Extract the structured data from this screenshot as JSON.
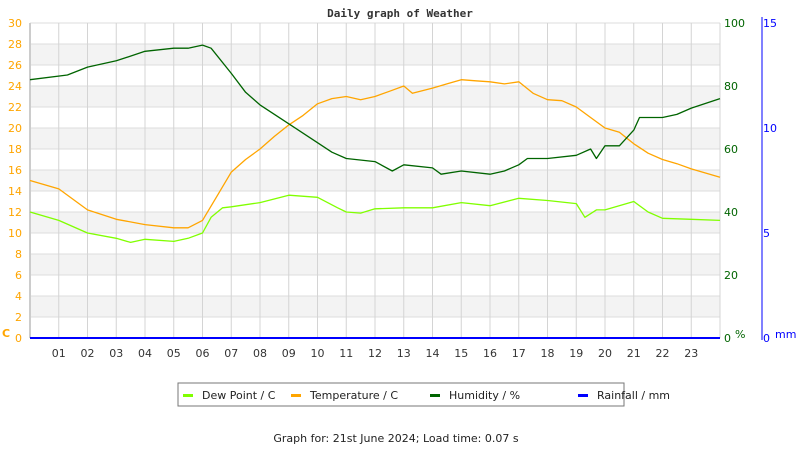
{
  "chart_data": {
    "type": "line",
    "title": "Daily graph of Weather",
    "x_ticks": [
      "01",
      "02",
      "03",
      "04",
      "05",
      "06",
      "07",
      "08",
      "09",
      "10",
      "11",
      "12",
      "13",
      "14",
      "15",
      "16",
      "17",
      "18",
      "19",
      "20",
      "21",
      "22",
      "23"
    ],
    "xlim": [
      0,
      24
    ],
    "grid": true,
    "legend_placement": "bottom",
    "axes": {
      "left": {
        "unit": "C",
        "ylim": [
          0,
          30
        ],
        "ticks": [
          "0",
          "2",
          "4",
          "6",
          "8",
          "10",
          "12",
          "14",
          "16",
          "18",
          "20",
          "22",
          "24",
          "26",
          "28",
          "30"
        ],
        "color": "#ffa500"
      },
      "right": {
        "unit": "%",
        "ylim": [
          0,
          100
        ],
        "ticks": [
          "0",
          "20",
          "40",
          "60",
          "80",
          "100"
        ],
        "color": "#006400"
      },
      "far_right": {
        "unit": "mm",
        "ylim": [
          0,
          15
        ],
        "ticks": [
          "0",
          "5",
          "10",
          "15"
        ],
        "color": "#0000ff"
      }
    },
    "series": [
      {
        "name": "Dew Point / C",
        "axis": "left",
        "color": "#80ff00",
        "x": [
          0,
          1,
          2,
          3,
          3.5,
          4,
          5,
          5.5,
          6,
          6.3,
          6.7,
          7,
          8,
          9,
          10,
          10.7,
          11,
          11.5,
          12,
          13,
          14,
          15,
          16,
          17,
          18,
          19,
          19.3,
          19.7,
          20,
          21,
          21.5,
          22,
          23,
          24
        ],
        "y": [
          12.0,
          11.2,
          10.0,
          9.5,
          9.1,
          9.4,
          9.2,
          9.5,
          10.0,
          11.5,
          12.4,
          12.5,
          12.9,
          13.6,
          13.4,
          12.4,
          12.0,
          11.9,
          12.3,
          12.4,
          12.4,
          12.9,
          12.6,
          13.3,
          13.1,
          12.8,
          11.5,
          12.2,
          12.2,
          13.0,
          12.0,
          11.4,
          11.3,
          11.2
        ]
      },
      {
        "name": "Temperature / C",
        "axis": "left",
        "color": "#ffa500",
        "x": [
          0,
          1,
          2,
          3,
          4,
          5,
          5.5,
          6,
          6.5,
          7,
          7.5,
          8,
          8.5,
          9,
          9.5,
          10,
          10.5,
          11,
          11.5,
          12,
          12.5,
          13,
          13.3,
          14,
          14.5,
          15,
          15.5,
          16,
          16.5,
          17,
          17.5,
          18,
          18.5,
          19,
          19.5,
          20,
          20.5,
          21,
          21.5,
          22,
          22.5,
          23,
          24
        ],
        "y": [
          15.0,
          14.2,
          12.2,
          11.3,
          10.8,
          10.5,
          10.5,
          11.2,
          13.5,
          15.8,
          17.0,
          18.0,
          19.2,
          20.3,
          21.2,
          22.3,
          22.8,
          23.0,
          22.7,
          23.0,
          23.5,
          24.0,
          23.3,
          23.8,
          24.2,
          24.6,
          24.5,
          24.4,
          24.2,
          24.4,
          23.3,
          22.7,
          22.6,
          22.0,
          21.0,
          20.0,
          19.6,
          18.5,
          17.6,
          17.0,
          16.6,
          16.1,
          15.3
        ]
      },
      {
        "name": "Humidity / %",
        "axis": "right",
        "color": "#006400",
        "x": [
          0,
          1.3,
          2,
          3,
          4,
          5,
          5.5,
          6,
          6.3,
          7,
          7.5,
          8,
          9,
          10,
          10.5,
          11,
          12,
          12.6,
          13,
          14,
          14.3,
          15,
          16,
          16.5,
          17,
          17.3,
          18,
          19,
          19.5,
          19.7,
          20,
          20.5,
          21,
          21.2,
          22,
          22.5,
          23,
          24
        ],
        "y": [
          82,
          83.5,
          86,
          88,
          91,
          92,
          92,
          93,
          92,
          84,
          78,
          74,
          68,
          62,
          59,
          57,
          56,
          53,
          55,
          54,
          52,
          53,
          52,
          53,
          55,
          57,
          57,
          58,
          60,
          57,
          61,
          61,
          66,
          70,
          70,
          71,
          73,
          76
        ]
      },
      {
        "name": "Rainfall / mm",
        "axis": "far_right",
        "color": "#0000ff",
        "x": [
          0,
          24
        ],
        "y": [
          0,
          0
        ]
      }
    ]
  },
  "footer": "Graph for: 21st June 2024; Load time: 0.07 s"
}
